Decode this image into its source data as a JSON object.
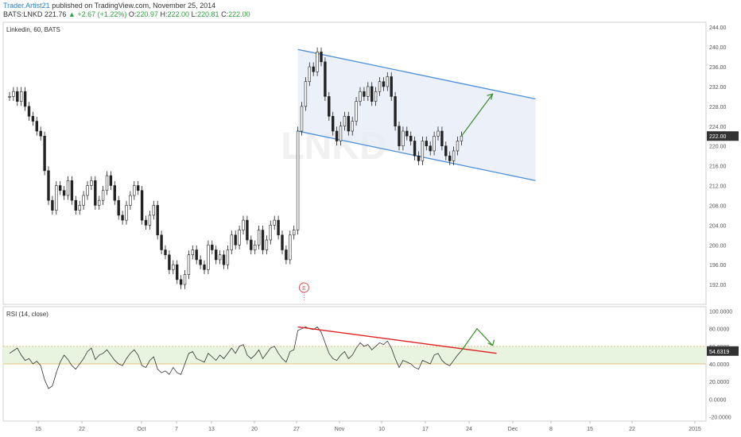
{
  "header": {
    "author": "Trader.Artist21",
    "published": "published on TradingView.com, November 25, 2014",
    "symbol": "BATS:LNKD",
    "last": "221.76",
    "change": "▲ +2.67 (+1.22%)",
    "o_label": "O:",
    "o_value": "220.97",
    "h_label": "H:",
    "h_value": "222.00",
    "l_label": "L:",
    "l_value": "220.81",
    "c_label": "C:",
    "c_value": "222.00"
  },
  "colors": {
    "up": "#2e9e3e",
    "channel": "#4a8fd8",
    "channel_fill": "#e7eef8",
    "trendline": "#e02020",
    "arrow": "#3a8a2a",
    "rsi_band": "#e8f3e0",
    "rsi_line": "#333333",
    "price_tag": "#333333"
  },
  "chart_data": [
    {
      "type": "candlestick",
      "title": "Linkedin, 60, BATS",
      "watermark": "LNKD",
      "ylim": [
        188,
        245
      ],
      "y_ticks": [
        "192.00",
        "196.00",
        "200.00",
        "204.00",
        "208.00",
        "212.00",
        "216.00",
        "220.00",
        "224.00",
        "228.00",
        "232.00",
        "236.00",
        "240.00",
        "244.00"
      ],
      "price_marker": "222.00",
      "x_ticks": [
        "15",
        "22",
        "Oct",
        "7",
        "13",
        "20",
        "27",
        "Nov",
        "10",
        "17",
        "24",
        "Dec",
        "8",
        "15",
        "22",
        "2015"
      ],
      "earnings_marker": "E",
      "price_path": [
        [
          0,
          230
        ],
        [
          1,
          231
        ],
        [
          2,
          229
        ],
        [
          3,
          231
        ],
        [
          4,
          228
        ],
        [
          5,
          226
        ],
        [
          6,
          225
        ],
        [
          7,
          223
        ],
        [
          8,
          222
        ],
        [
          9,
          215
        ],
        [
          10,
          209
        ],
        [
          11,
          207
        ],
        [
          12,
          212
        ],
        [
          13,
          211
        ],
        [
          14,
          210
        ],
        [
          15,
          213
        ],
        [
          16,
          209
        ],
        [
          17,
          207
        ],
        [
          18,
          208
        ],
        [
          19,
          210
        ],
        [
          20,
          212
        ],
        [
          21,
          213
        ],
        [
          22,
          208
        ],
        [
          23,
          209
        ],
        [
          24,
          211
        ],
        [
          25,
          214
        ],
        [
          26,
          212
        ],
        [
          27,
          209
        ],
        [
          28,
          206
        ],
        [
          29,
          205
        ],
        [
          30,
          208
        ],
        [
          31,
          210
        ],
        [
          32,
          212
        ],
        [
          33,
          211
        ],
        [
          34,
          205
        ],
        [
          35,
          204
        ],
        [
          36,
          206
        ],
        [
          37,
          208
        ],
        [
          38,
          202
        ],
        [
          39,
          199
        ],
        [
          40,
          198
        ],
        [
          41,
          195
        ],
        [
          42,
          196
        ],
        [
          43,
          193
        ],
        [
          44,
          192
        ],
        [
          45,
          194
        ],
        [
          46,
          198
        ],
        [
          47,
          199
        ],
        [
          48,
          197
        ],
        [
          49,
          196
        ],
        [
          50,
          195
        ],
        [
          51,
          200
        ],
        [
          52,
          199
        ],
        [
          53,
          197
        ],
        [
          54,
          198
        ],
        [
          55,
          196
        ],
        [
          56,
          199
        ],
        [
          57,
          202
        ],
        [
          58,
          200
        ],
        [
          59,
          203
        ],
        [
          60,
          205
        ],
        [
          61,
          201
        ],
        [
          62,
          199
        ],
        [
          63,
          200
        ],
        [
          64,
          203
        ],
        [
          65,
          199
        ],
        [
          66,
          201
        ],
        [
          67,
          204
        ],
        [
          68,
          205
        ],
        [
          69,
          202
        ],
        [
          70,
          199
        ],
        [
          71,
          197
        ],
        [
          72,
          202
        ],
        [
          73,
          203
        ],
        [
          74,
          223
        ],
        [
          75,
          228
        ],
        [
          76,
          233
        ],
        [
          77,
          236
        ],
        [
          78,
          235
        ],
        [
          79,
          239
        ],
        [
          80,
          237
        ],
        [
          81,
          230
        ],
        [
          82,
          226
        ],
        [
          83,
          223
        ],
        [
          84,
          221
        ],
        [
          85,
          224
        ],
        [
          86,
          226
        ],
        [
          87,
          223
        ],
        [
          88,
          225
        ],
        [
          89,
          229
        ],
        [
          90,
          231
        ],
        [
          91,
          230
        ],
        [
          92,
          232
        ],
        [
          93,
          229
        ],
        [
          94,
          231
        ],
        [
          95,
          233
        ],
        [
          96,
          232
        ],
        [
          97,
          234
        ],
        [
          98,
          230
        ],
        [
          99,
          224
        ],
        [
          100,
          220
        ],
        [
          101,
          223
        ],
        [
          102,
          222
        ],
        [
          103,
          221
        ],
        [
          104,
          218
        ],
        [
          105,
          217
        ],
        [
          106,
          221
        ],
        [
          107,
          220
        ],
        [
          108,
          219
        ],
        [
          109,
          222
        ],
        [
          110,
          223
        ],
        [
          111,
          220
        ],
        [
          112,
          218
        ],
        [
          113,
          217
        ],
        [
          114,
          219
        ],
        [
          115,
          221
        ],
        [
          116,
          222
        ]
      ],
      "channel": {
        "upper": [
          [
            74,
            239.5
          ],
          [
            135,
            229.5
          ]
        ],
        "lower": [
          [
            74,
            223.0
          ],
          [
            135,
            213.0
          ]
        ]
      },
      "projection_arrow": [
        [
          116,
          222
        ],
        [
          124,
          230.5
        ]
      ]
    },
    {
      "type": "line",
      "title": "RSI (14, close)",
      "ylim": [
        -25,
        105
      ],
      "y_ticks": [
        "100.0000",
        "80.0000",
        "60.0000",
        "40.0000",
        "20.0000",
        "0.0000",
        "-20.0000"
      ],
      "band": [
        40,
        60
      ],
      "last_value": "54.6319",
      "rsi_path": [
        [
          0,
          52
        ],
        [
          1,
          55
        ],
        [
          2,
          58
        ],
        [
          3,
          50
        ],
        [
          4,
          44
        ],
        [
          5,
          46
        ],
        [
          6,
          40
        ],
        [
          7,
          43
        ],
        [
          8,
          38
        ],
        [
          9,
          22
        ],
        [
          10,
          12
        ],
        [
          11,
          15
        ],
        [
          12,
          30
        ],
        [
          13,
          42
        ],
        [
          14,
          50
        ],
        [
          15,
          45
        ],
        [
          16,
          38
        ],
        [
          17,
          34
        ],
        [
          18,
          40
        ],
        [
          19,
          46
        ],
        [
          20,
          54
        ],
        [
          21,
          58
        ],
        [
          22,
          45
        ],
        [
          23,
          50
        ],
        [
          24,
          52
        ],
        [
          25,
          56
        ],
        [
          26,
          50
        ],
        [
          27,
          44
        ],
        [
          28,
          40
        ],
        [
          29,
          38
        ],
        [
          30,
          46
        ],
        [
          31,
          52
        ],
        [
          32,
          56
        ],
        [
          33,
          50
        ],
        [
          34,
          38
        ],
        [
          35,
          36
        ],
        [
          36,
          44
        ],
        [
          37,
          48
        ],
        [
          38,
          34
        ],
        [
          39,
          30
        ],
        [
          40,
          32
        ],
        [
          41,
          28
        ],
        [
          42,
          36
        ],
        [
          43,
          30
        ],
        [
          44,
          28
        ],
        [
          45,
          40
        ],
        [
          46,
          52
        ],
        [
          47,
          54
        ],
        [
          48,
          46
        ],
        [
          49,
          44
        ],
        [
          50,
          42
        ],
        [
          51,
          52
        ],
        [
          52,
          48
        ],
        [
          53,
          44
        ],
        [
          54,
          50
        ],
        [
          55,
          46
        ],
        [
          56,
          52
        ],
        [
          57,
          58
        ],
        [
          58,
          52
        ],
        [
          59,
          60
        ],
        [
          60,
          62
        ],
        [
          61,
          50
        ],
        [
          62,
          46
        ],
        [
          63,
          50
        ],
        [
          64,
          56
        ],
        [
          65,
          46
        ],
        [
          66,
          52
        ],
        [
          67,
          58
        ],
        [
          68,
          60
        ],
        [
          69,
          52
        ],
        [
          70,
          46
        ],
        [
          71,
          42
        ],
        [
          72,
          54
        ],
        [
          73,
          56
        ],
        [
          74,
          78
        ],
        [
          75,
          80
        ],
        [
          76,
          82
        ],
        [
          77,
          80
        ],
        [
          78,
          79
        ],
        [
          79,
          82
        ],
        [
          80,
          76
        ],
        [
          81,
          64
        ],
        [
          82,
          52
        ],
        [
          83,
          46
        ],
        [
          84,
          44
        ],
        [
          85,
          50
        ],
        [
          86,
          54
        ],
        [
          87,
          46
        ],
        [
          88,
          50
        ],
        [
          89,
          58
        ],
        [
          90,
          64
        ],
        [
          91,
          60
        ],
        [
          92,
          62
        ],
        [
          93,
          56
        ],
        [
          94,
          60
        ],
        [
          95,
          64
        ],
        [
          96,
          62
        ],
        [
          97,
          66
        ],
        [
          98,
          58
        ],
        [
          99,
          46
        ],
        [
          100,
          36
        ],
        [
          101,
          44
        ],
        [
          102,
          42
        ],
        [
          103,
          40
        ],
        [
          104,
          36
        ],
        [
          105,
          34
        ],
        [
          106,
          44
        ],
        [
          107,
          42
        ],
        [
          108,
          40
        ],
        [
          109,
          50
        ],
        [
          110,
          52
        ],
        [
          111,
          44
        ],
        [
          112,
          40
        ],
        [
          113,
          38
        ],
        [
          114,
          44
        ],
        [
          115,
          50
        ],
        [
          116,
          55
        ]
      ],
      "trendline": [
        [
          74,
          82
        ],
        [
          125,
          52
        ]
      ],
      "projection_arrow": [
        [
          116,
          55
        ],
        [
          120,
          80
        ],
        [
          124,
          61
        ]
      ]
    }
  ]
}
